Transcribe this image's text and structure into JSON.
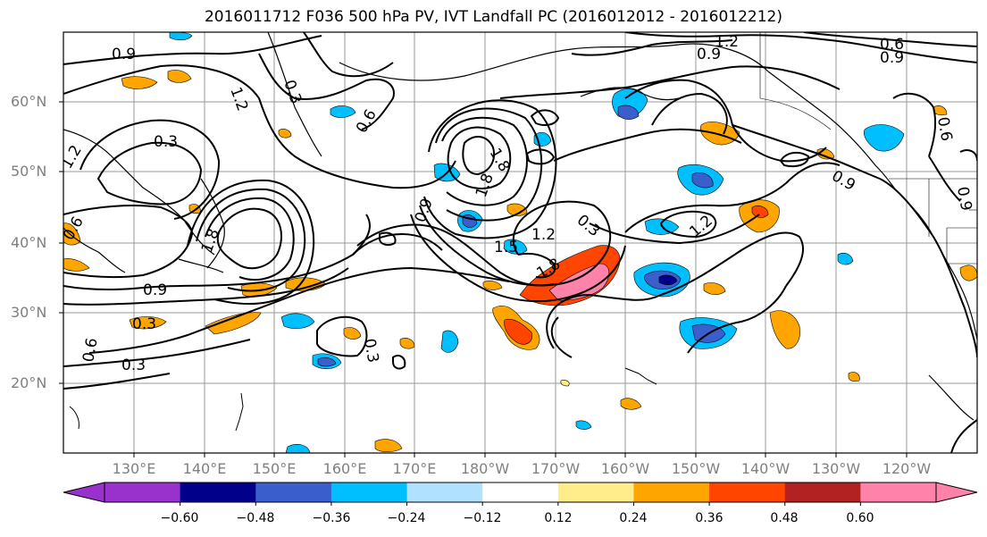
{
  "title": "2016011712 F036 500 hPa PV, IVT Landfall PC (2016012012 - 2016012212)",
  "lat_labels": [
    "60°N",
    "50°N",
    "40°N",
    "30°N",
    "20°N"
  ],
  "lon_labels": [
    "130°E",
    "140°E",
    "150°E",
    "160°E",
    "170°E",
    "180°W",
    "170°W",
    "160°W",
    "150°W",
    "140°W",
    "130°W",
    "120°W"
  ],
  "contour_labels": [
    "0.9",
    "1.2",
    "0.9",
    "1.2",
    "0.3",
    "0.6",
    "0.3",
    "1.8",
    "1.8",
    "0.9",
    "1.8",
    "1.2",
    "0.3",
    "1.5",
    "1.8",
    "1.2",
    "0.9",
    "0.6",
    "0.3",
    "0.3",
    "0.6",
    "0.9",
    "1.2",
    "0.9",
    "0.6",
    "0.3",
    "0.6",
    "0.9"
  ],
  "colorbar": {
    "colors": [
      "#9932cc",
      "#00008b",
      "#3a5fcd",
      "#00bfff",
      "#b0e2ff",
      "#ffffff",
      "#ffec8b",
      "#ffa500",
      "#ff4500",
      "#b22222",
      "#ff82ab"
    ],
    "ticks": [
      "−0.60",
      "−0.48",
      "−0.36",
      "−0.24",
      "−0.12",
      "0.12",
      "0.24",
      "0.36",
      "0.48",
      "0.60"
    ]
  },
  "map": {
    "ocean": "#ffffff",
    "grid": "#999999",
    "contour": "#000000"
  }
}
